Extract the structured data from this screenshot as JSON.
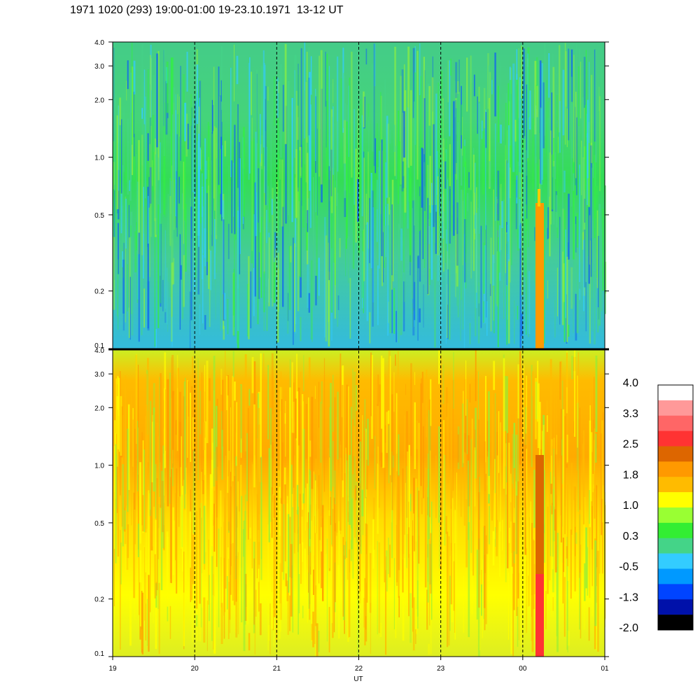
{
  "title": "1971 1020 (293) 19:00-01:00 19-23.10.1971  13-12 UT",
  "chart_data": [
    {
      "type": "heatmap",
      "panel": "top",
      "y_scale": "log",
      "ylim": [
        0.1,
        4.0
      ],
      "y_ticks": [
        "4.0",
        "3.0",
        "2.0",
        "1.0",
        "0.5",
        "0.2",
        "0.1"
      ],
      "x_ticks": [
        "19",
        "20",
        "21",
        "22",
        "23",
        "00",
        "01"
      ],
      "dominant_colors": [
        "#33ee44",
        "#44d488",
        "#33ccff",
        "#88ee44",
        "#1166ee"
      ],
      "feature": "orange band near 00:20 UT below 0.6"
    },
    {
      "type": "heatmap",
      "panel": "bottom",
      "y_scale": "log",
      "ylim": [
        0.1,
        4.0
      ],
      "y_ticks": [
        "4.0",
        "3.0",
        "2.0",
        "1.0",
        "0.5",
        "0.2",
        "0.1"
      ],
      "x_ticks": [
        "19",
        "20",
        "21",
        "22",
        "23",
        "00",
        "01"
      ],
      "xlabel": "UT",
      "dominant_colors": [
        "#ffff00",
        "#ffbb00",
        "#ff9900",
        "#99ee33"
      ],
      "feature": "red band near 00:20 UT below 1.2"
    }
  ],
  "colorbar": {
    "colors": [
      "#ffffff",
      "#ff9999",
      "#ff6666",
      "#ff3333",
      "#dd6600",
      "#ff9900",
      "#ffbb00",
      "#ffff00",
      "#99ff33",
      "#33ee33",
      "#44d488",
      "#33ccff",
      "#0099ff",
      "#0044ff",
      "#0011aa",
      "#000000"
    ],
    "labels": [
      "4.0",
      "3.3",
      "2.5",
      "1.8",
      "1.0",
      "0.3",
      "-0.5",
      "-1.3",
      "-2.0"
    ]
  }
}
